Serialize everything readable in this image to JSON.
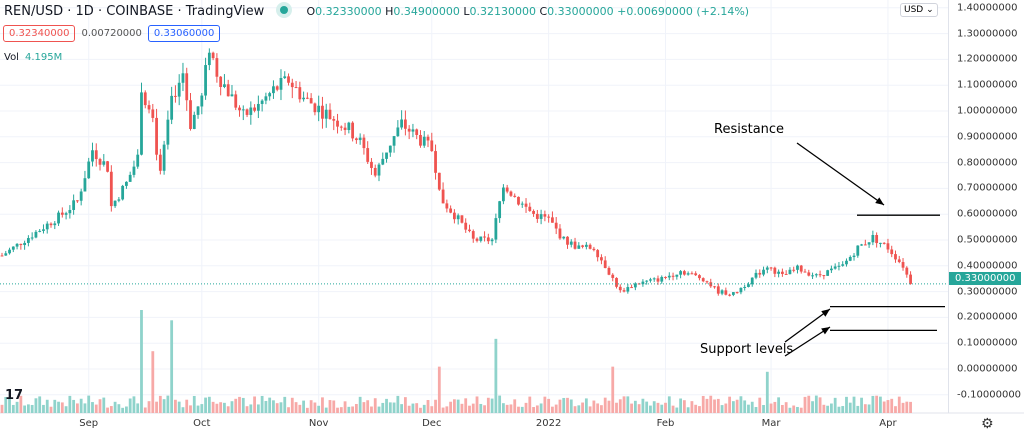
{
  "header": {
    "title": "REN/USD · 1D · COINBASE · TradingView",
    "open": "0.32330000",
    "high": "0.34900000",
    "low": "0.32130000",
    "close": "0.33000000",
    "change": "+0.00690000 (+2.14%)",
    "o": "O",
    "h": "H",
    "l": "L",
    "c": "C"
  },
  "quote": {
    "bid": "0.32340000",
    "spread": "0.00720000",
    "ask": "0.33060000"
  },
  "volume": {
    "label": "Vol",
    "value": "4.195M"
  },
  "currency": "USD ⌄",
  "current_price": "0.33000000",
  "annotations": {
    "resistance": "Resistance",
    "support": "Support levels"
  },
  "colors": {
    "up": "#26a69a",
    "down": "#ef5350"
  },
  "chart_data": {
    "type": "candlestick",
    "title": "REN/USD · 1D · COINBASE",
    "y_ticks": [
      "1.40000000",
      "1.30000000",
      "1.20000000",
      "1.10000000",
      "1.00000000",
      "0.90000000",
      "0.80000000",
      "0.70000000",
      "0.60000000",
      "0.50000000",
      "0.40000000",
      "0.30000000",
      "0.20000000",
      "0.10000000",
      "0.00000000",
      "-0.10000000"
    ],
    "y_tick_values": [
      1.4,
      1.3,
      1.2,
      1.1,
      1.0,
      0.9,
      0.8,
      0.7,
      0.6,
      0.5,
      0.4,
      0.3,
      0.2,
      0.1,
      0.0,
      -0.1
    ],
    "ylim": [
      -0.1,
      1.4
    ],
    "x_ticks": [
      {
        "label": "Sep",
        "day": 23
      },
      {
        "label": "Oct",
        "day": 53
      },
      {
        "label": "Nov",
        "day": 84
      },
      {
        "label": "Dec",
        "day": 114
      },
      {
        "label": "2022",
        "day": 145
      },
      {
        "label": "Feb",
        "day": 176
      },
      {
        "label": "Mar",
        "day": 204
      },
      {
        "label": "Apr",
        "day": 235
      }
    ],
    "close_path_day_price": [
      [
        0,
        0.44
      ],
      [
        8,
        0.52
      ],
      [
        16,
        0.6
      ],
      [
        20,
        0.65
      ],
      [
        24,
        0.85
      ],
      [
        28,
        0.78
      ],
      [
        29,
        0.63
      ],
      [
        33,
        0.72
      ],
      [
        36,
        0.82
      ],
      [
        37,
        1.1
      ],
      [
        40,
        0.95
      ],
      [
        42,
        0.75
      ],
      [
        45,
        1.05
      ],
      [
        48,
        1.15
      ],
      [
        50,
        0.95
      ],
      [
        53,
        1.05
      ],
      [
        55,
        1.25
      ],
      [
        57,
        1.15
      ],
      [
        61,
        1.05
      ],
      [
        64,
        0.98
      ],
      [
        68,
        1.02
      ],
      [
        72,
        1.08
      ],
      [
        76,
        1.12
      ],
      [
        80,
        1.05
      ],
      [
        85,
        1.0
      ],
      [
        92,
        0.93
      ],
      [
        95,
        0.88
      ],
      [
        99,
        0.75
      ],
      [
        102,
        0.85
      ],
      [
        106,
        0.95
      ],
      [
        110,
        0.9
      ],
      [
        114,
        0.85
      ],
      [
        117,
        0.65
      ],
      [
        121,
        0.58
      ],
      [
        125,
        0.5
      ],
      [
        130,
        0.5
      ],
      [
        133,
        0.72
      ],
      [
        137,
        0.65
      ],
      [
        141,
        0.6
      ],
      [
        145,
        0.58
      ],
      [
        149,
        0.5
      ],
      [
        153,
        0.47
      ],
      [
        157,
        0.47
      ],
      [
        160,
        0.4
      ],
      [
        164,
        0.3
      ],
      [
        168,
        0.33
      ],
      [
        175,
        0.35
      ],
      [
        180,
        0.38
      ],
      [
        186,
        0.35
      ],
      [
        190,
        0.3
      ],
      [
        194,
        0.29
      ],
      [
        199,
        0.35
      ],
      [
        203,
        0.4
      ],
      [
        207,
        0.36
      ],
      [
        211,
        0.39
      ],
      [
        216,
        0.36
      ],
      [
        223,
        0.4
      ],
      [
        227,
        0.47
      ],
      [
        231,
        0.51
      ],
      [
        235,
        0.47
      ],
      [
        239,
        0.4
      ],
      [
        241,
        0.33
      ]
    ],
    "volume_spikes_day_rel": [
      [
        37,
        1.0
      ],
      [
        40,
        0.6
      ],
      [
        45,
        0.9
      ],
      [
        116,
        0.45
      ],
      [
        131,
        0.72
      ],
      [
        162,
        0.45
      ],
      [
        203,
        0.4
      ]
    ],
    "resistance_level": 0.6,
    "support_levels": [
      0.3,
      0.2
    ]
  }
}
